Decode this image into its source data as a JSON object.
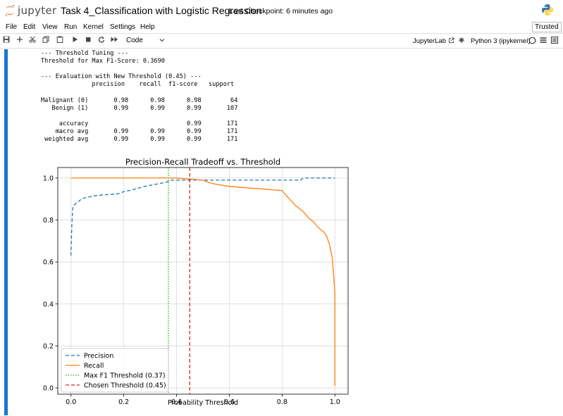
{
  "header": {
    "logo_text": "jupyter",
    "notebook_title": "Task 4_Classification with Logistic Regression",
    "checkpoint": "Last Checkpoint: 6 minutes ago"
  },
  "menu": {
    "items": [
      "File",
      "Edit",
      "View",
      "Run",
      "Kernel",
      "Settings",
      "Help"
    ]
  },
  "trusted_label": "Trusted",
  "toolbar": {
    "cell_type": "Code",
    "jupyterlab_label": "JupyterLab",
    "kernel_label": "Python 3 (ipykernel)"
  },
  "output": {
    "lines": [
      "--- Threshold Tuning ---",
      "Threshold for Max F1-Score: 0.3690",
      "",
      "--- Evaluation with New Threshold (0.45) ---",
      "              precision    recall  f1-score   support",
      "",
      "Malignant (0)       0.98      0.98      0.98        64",
      "   Benign (1)       0.99      0.99      0.99       107",
      "",
      "     accuracy                           0.99       171",
      "    macro avg       0.99      0.99      0.99       171",
      " weighted avg       0.99      0.99      0.99       171"
    ]
  },
  "chart_data": {
    "type": "line",
    "title": "Precision-Recall Tradeoff vs. Threshold",
    "xlabel": "Probability Threshold",
    "ylabel": "",
    "xlim": [
      -0.05,
      1.05
    ],
    "ylim": [
      -0.03,
      1.05
    ],
    "xticks": [
      0.0,
      0.2,
      0.4,
      0.6,
      0.8,
      1.0
    ],
    "yticks": [
      0.0,
      0.2,
      0.4,
      0.6,
      0.8,
      1.0
    ],
    "grid": true,
    "legend": "lower-left",
    "series": [
      {
        "name": "Precision",
        "color": "#1f77b4",
        "dash": "dashed",
        "x": [
          0.0,
          0.003,
          0.006,
          0.01,
          0.02,
          0.03,
          0.04,
          0.05,
          0.07,
          0.09,
          0.12,
          0.15,
          0.18,
          0.2,
          0.22,
          0.25,
          0.28,
          0.3,
          0.32,
          0.34,
          0.36,
          0.37,
          0.38,
          0.4,
          0.45,
          0.5,
          0.6,
          0.7,
          0.8,
          0.87,
          0.88,
          0.95,
          1.0
        ],
        "y": [
          0.63,
          0.77,
          0.85,
          0.87,
          0.88,
          0.89,
          0.9,
          0.905,
          0.91,
          0.915,
          0.92,
          0.922,
          0.925,
          0.935,
          0.94,
          0.95,
          0.96,
          0.965,
          0.97,
          0.975,
          0.98,
          0.985,
          0.99,
          0.99,
          0.99,
          0.99,
          0.99,
          0.99,
          0.99,
          0.99,
          1.0,
          1.0,
          1.0
        ]
      },
      {
        "name": "Recall",
        "color": "#ff7f0e",
        "dash": "solid",
        "x": [
          0.0,
          0.1,
          0.2,
          0.3,
          0.4,
          0.5,
          0.52,
          0.55,
          0.6,
          0.7,
          0.8,
          0.82,
          0.85,
          0.88,
          0.9,
          0.92,
          0.94,
          0.96,
          0.97,
          0.98,
          0.99,
          0.995,
          1.0,
          1.0
        ],
        "y": [
          1.0,
          1.0,
          1.0,
          1.0,
          1.0,
          0.99,
          0.98,
          0.97,
          0.96,
          0.95,
          0.94,
          0.91,
          0.87,
          0.84,
          0.81,
          0.79,
          0.76,
          0.74,
          0.72,
          0.68,
          0.62,
          0.54,
          0.45,
          0.01
        ]
      }
    ],
    "vlines": [
      {
        "name": "Max F1 Threshold (0.37)",
        "x": 0.369,
        "color": "#2ca02c",
        "dash": "dotted"
      },
      {
        "name": "Chosen Threshold (0.45)",
        "x": 0.45,
        "color": "#d62728",
        "dash": "dashed"
      }
    ]
  }
}
